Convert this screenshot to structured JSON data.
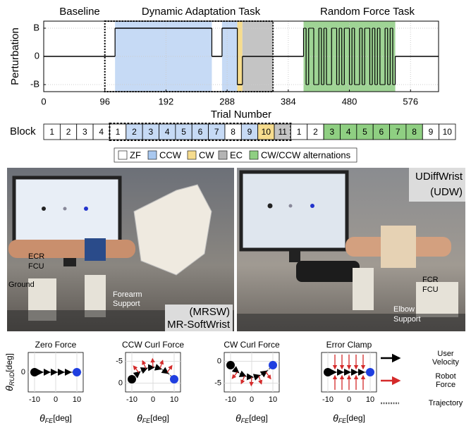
{
  "chart_data": {
    "type": "step",
    "phase_labels": [
      "Baseline",
      "Dynamic Adaptation Task",
      "Random Force Task"
    ],
    "xlabel": "Trial Number",
    "ylabel": "Perturbation",
    "xlim": [
      0,
      620
    ],
    "ylim": [
      -1.25,
      1.25
    ],
    "xticks": [
      0,
      96,
      192,
      288,
      384,
      480,
      576
    ],
    "yticks": [
      {
        "value": -1,
        "label": "-B"
      },
      0,
      {
        "value": 1,
        "label": "B"
      }
    ],
    "grid": true,
    "line_color": "#000000",
    "task_box": [
      96,
      360
    ],
    "regions": [
      {
        "start": 112,
        "end": 264,
        "color": "#c6daf5"
      },
      {
        "start": 280,
        "end": 304,
        "color": "#c6daf5"
      },
      {
        "start": 304,
        "end": 312,
        "color": "#f6dc8e"
      },
      {
        "start": 312,
        "end": 360,
        "color": "#c4c4c4"
      },
      {
        "start": 408,
        "end": 552,
        "color": "#9fd495"
      }
    ],
    "segments": [
      {
        "start": 0,
        "end": 112,
        "value": 0
      },
      {
        "start": 112,
        "end": 264,
        "value": 1
      },
      {
        "start": 264,
        "end": 280,
        "value": 0
      },
      {
        "start": 280,
        "end": 304,
        "value": 1
      },
      {
        "start": 304,
        "end": 312,
        "value": -1
      },
      {
        "start": 312,
        "end": 360,
        "value": 0
      },
      {
        "start": 360,
        "end": 408,
        "value": 0
      },
      {
        "start": 552,
        "end": 620,
        "value": 0
      }
    ],
    "random_force": {
      "start": 408,
      "step": 4,
      "values": [
        1,
        -1,
        1,
        1,
        -1,
        -1,
        1,
        -1,
        1,
        -1,
        -1,
        1,
        1,
        -1,
        1,
        -1,
        1,
        1,
        -1,
        1,
        -1,
        -1,
        1,
        -1,
        1,
        1,
        -1,
        1,
        -1,
        1,
        -1,
        -1,
        1,
        -1,
        1,
        -1
      ]
    }
  },
  "block_label": "Block",
  "blocks": [
    [
      {
        "label": "1",
        "color": "#ffffff"
      },
      {
        "label": "2",
        "color": "#ffffff"
      },
      {
        "label": "3",
        "color": "#ffffff"
      },
      {
        "label": "4",
        "color": "#ffffff"
      }
    ],
    [
      {
        "label": "1",
        "color": "#ffffff"
      },
      {
        "label": "2",
        "color": "#c6daf5"
      },
      {
        "label": "3",
        "color": "#c6daf5"
      },
      {
        "label": "4",
        "color": "#c6daf5"
      },
      {
        "label": "5",
        "color": "#c6daf5"
      },
      {
        "label": "6",
        "color": "#c6daf5"
      },
      {
        "label": "7",
        "color": "#c6daf5"
      },
      {
        "label": "8",
        "color": "#ffffff"
      },
      {
        "label": "9",
        "color": "#c6daf5"
      },
      {
        "label": "10",
        "color": "#f6dc8e"
      },
      {
        "label": "11",
        "color": "#c4c4c4"
      }
    ],
    [
      {
        "label": "1",
        "color": "#ffffff"
      },
      {
        "label": "2",
        "color": "#ffffff"
      },
      {
        "label": "3",
        "color": "#8fcf82"
      },
      {
        "label": "4",
        "color": "#8fcf82"
      },
      {
        "label": "5",
        "color": "#8fcf82"
      },
      {
        "label": "6",
        "color": "#8fcf82"
      },
      {
        "label": "7",
        "color": "#8fcf82"
      },
      {
        "label": "8",
        "color": "#8fcf82"
      },
      {
        "label": "9",
        "color": "#ffffff"
      },
      {
        "label": "10",
        "color": "#ffffff"
      }
    ]
  ],
  "legend": [
    {
      "label": "ZF",
      "color": "#ffffff"
    },
    {
      "label": "CCW",
      "color": "#a9c8ef"
    },
    {
      "label": "CW",
      "color": "#f6dc8e"
    },
    {
      "label": "EC",
      "color": "#b4b4b4"
    },
    {
      "label": "CW/CCW alternations",
      "color": "#8fcf82"
    }
  ],
  "photo_left": {
    "labels": [
      "ECR",
      "FCU",
      "Ground",
      "Forearm",
      "Support"
    ],
    "device": "(MRSW)",
    "device_name": "MR-SoftWrist"
  },
  "photo_right": {
    "device_name": "UDiffWrist",
    "device": "(UDW)",
    "labels": [
      "FCR",
      "FCU",
      "Elbow",
      "Support"
    ]
  },
  "panels": [
    {
      "title": "Zero Force",
      "xticks": [
        -10,
        0,
        10
      ],
      "xlim": [
        -13,
        13
      ],
      "yticks": [
        0
      ],
      "ylim": [
        -4,
        4
      ]
    },
    {
      "title": "CCW Curl Force",
      "xticks": [
        -10,
        0,
        10
      ],
      "xlim": [
        -13,
        13
      ],
      "yticks": [
        -5,
        0
      ],
      "ylim": [
        2,
        -7
      ]
    },
    {
      "title": "CW Curl Force",
      "xticks": [
        -10,
        0,
        10
      ],
      "xlim": [
        -13,
        13
      ],
      "yticks": [
        0,
        -5
      ],
      "ylim": [
        -7,
        2
      ]
    },
    {
      "title": "Error Clamp",
      "xticks": [
        -10,
        0,
        10
      ],
      "xlim": [
        -13,
        13
      ],
      "yticks": [],
      "ylim": [
        -4,
        4
      ]
    }
  ],
  "panel_xlabel": {
    "symbol": "θ",
    "subscript": "FE",
    "unit": "[deg]"
  },
  "panel_ylabel": {
    "symbol": "θ",
    "subscript": "RUD",
    "unit": "[deg]"
  },
  "panel_legend": [
    {
      "label": [
        "User",
        "Velocity"
      ],
      "color": "#000000"
    },
    {
      "label": [
        "Robot",
        "Force"
      ],
      "color": "#d42a2a"
    },
    {
      "label": [
        "Trajectory"
      ],
      "color": "#666666"
    }
  ]
}
